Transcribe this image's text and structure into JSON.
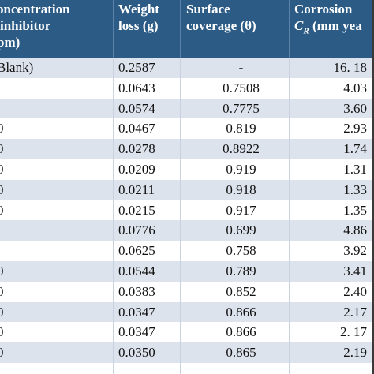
{
  "header": {
    "col0": [
      "oncentration",
      "inhibitor",
      "pm)"
    ],
    "col1": [
      "Weight",
      "loss (g)"
    ],
    "col2": [
      "Surface",
      "coverage (θ)"
    ],
    "col3": [
      "Corrosion",
      "C",
      "R",
      " (mm yea"
    ]
  },
  "rows": [
    {
      "conc": " Blank)",
      "weight": "0.2587",
      "coverage": "-",
      "rate": "16. 18"
    },
    {
      "conc": "",
      "weight": "0.0643",
      "coverage": "0.7508",
      "rate": "4.03"
    },
    {
      "conc": "",
      "weight": "0.0574",
      "coverage": "0.7775",
      "rate": "3.60"
    },
    {
      "conc": "0",
      "weight": "0.0467",
      "coverage": "0.819",
      "rate": "2.93"
    },
    {
      "conc": "0",
      "weight": "0.0278",
      "coverage": "0.8922",
      "rate": "1.74"
    },
    {
      "conc": "0",
      "weight": "0.0209",
      "coverage": "0.919",
      "rate": "1.31"
    },
    {
      "conc": "0",
      "weight": "0.0211",
      "coverage": "0.918",
      "rate": "1.33"
    },
    {
      "conc": "0",
      "weight": "0.0215",
      "coverage": "0.917",
      "rate": "1.35"
    },
    {
      "conc": "",
      "weight": "0.0776",
      "coverage": "0.699",
      "rate": "4.86"
    },
    {
      "conc": "",
      "weight": "0.0625",
      "coverage": "0.758",
      "rate": "3.92"
    },
    {
      "conc": "0",
      "weight": "0.0544",
      "coverage": "0.789",
      "rate": "3.41"
    },
    {
      "conc": "0",
      "weight": "0.0383",
      "coverage": "0.852",
      "rate": "2.40"
    },
    {
      "conc": "0",
      "weight": "0.0347",
      "coverage": "0.866",
      "rate": "2.17"
    },
    {
      "conc": "0",
      "weight": "0.0347",
      "coverage": "0.866",
      "rate": "2. 17"
    },
    {
      "conc": "0",
      "weight": "0.0350",
      "coverage": "0.865",
      "rate": "2.19"
    }
  ],
  "colors": {
    "header_bg": "#2c5b86",
    "header_text": "#ffffff",
    "row_shaded": "#dde3ec",
    "row_plain": "#ffffff"
  }
}
